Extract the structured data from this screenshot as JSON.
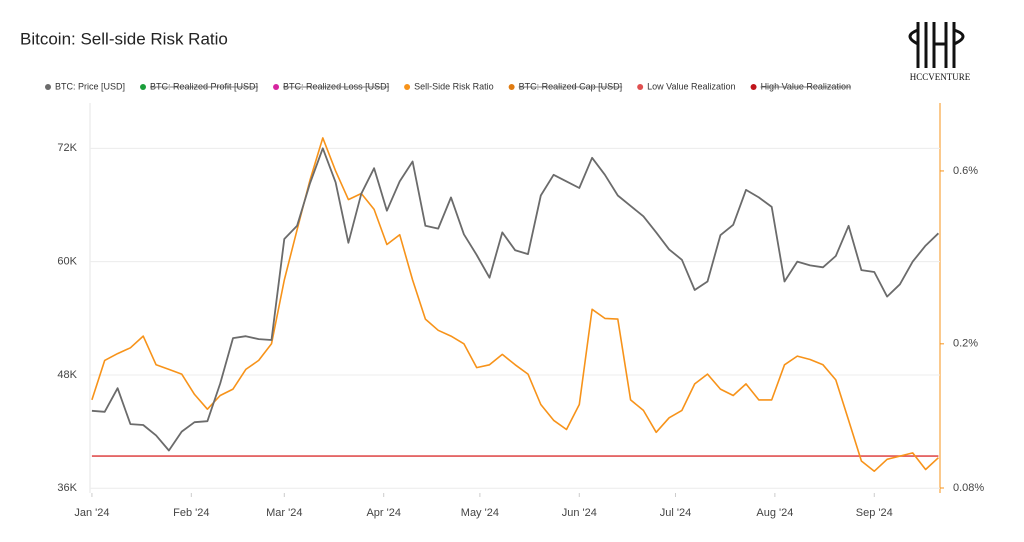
{
  "chart_data": {
    "type": "line",
    "title": "Bitcoin: Sell-side Risk Ratio",
    "watermark": "HCCVENTURE",
    "x": [
      0,
      4,
      8,
      12,
      16,
      20,
      24,
      28,
      32,
      36,
      40,
      44,
      48,
      52,
      56,
      60,
      64,
      68,
      72,
      76,
      80,
      84,
      88,
      92,
      96,
      100,
      104,
      108,
      112,
      116,
      120,
      124,
      128,
      132,
      136,
      140,
      144,
      148,
      152,
      156,
      160,
      164,
      168,
      172,
      176,
      180,
      184,
      188,
      192,
      196,
      200,
      204,
      208,
      212,
      216,
      220,
      224,
      228,
      232,
      236,
      240,
      244,
      248,
      252,
      256,
      260,
      264
    ],
    "xlim": [
      -0.6,
      264.5
    ],
    "xticks": [
      {
        "value": 0,
        "label": "Jan '24"
      },
      {
        "value": 31,
        "label": "Feb '24"
      },
      {
        "value": 60,
        "label": "Mar '24"
      },
      {
        "value": 91,
        "label": "Apr '24"
      },
      {
        "value": 121,
        "label": "May '24"
      },
      {
        "value": 152,
        "label": "Jun '24"
      },
      {
        "value": 182,
        "label": "Jul '24"
      },
      {
        "value": 213,
        "label": "Aug '24"
      },
      {
        "value": 244,
        "label": "Sep '24"
      }
    ],
    "ylim": [
      35500,
      76800
    ],
    "yticks": [
      {
        "value": 36000,
        "label": "36K"
      },
      {
        "value": 48000,
        "label": "48K"
      },
      {
        "value": 60000,
        "label": "60K"
      },
      {
        "value": 72000,
        "label": "72K"
      }
    ],
    "y2lim": [
      0.0775,
      0.924
    ],
    "y2log": true,
    "y2ticks": [
      {
        "value": 0.08,
        "label": "0.08%"
      },
      {
        "value": 0.2,
        "label": "0.2%"
      },
      {
        "value": 0.6,
        "label": "0.6%"
      }
    ],
    "grid": true,
    "legend": "top",
    "series": [
      {
        "name": "BTC: Price [USD]",
        "color": "#6b6b6b",
        "axis": "y",
        "visible": true,
        "values": [
          44200,
          44100,
          46600,
          42800,
          42700,
          41600,
          40000,
          42000,
          43000,
          43100,
          47100,
          51900,
          52100,
          51800,
          51700,
          62400,
          63800,
          68300,
          72000,
          68400,
          62000,
          67200,
          69900,
          65400,
          68500,
          70600,
          63800,
          63500,
          66800,
          62900,
          60700,
          58300,
          63100,
          61200,
          60800,
          67000,
          69200,
          68500,
          67800,
          71000,
          69200,
          67000,
          65900,
          64800,
          63100,
          61300,
          60200,
          57000,
          57900,
          62800,
          63900,
          67600,
          66800,
          65800,
          57900,
          60000,
          59600,
          59400,
          60600,
          63800,
          59100,
          58900,
          56300,
          57600,
          60000,
          61700,
          63000
        ]
      },
      {
        "name": "BTC: Realized Profit [USD]",
        "color": "#1a9e3a",
        "visible": false
      },
      {
        "name": "BTC: Realized Loss [USD]",
        "color": "#d6249f",
        "visible": false
      },
      {
        "name": "Sell-Side Risk Ratio",
        "color": "#f7931a",
        "axis": "y2",
        "visible": true,
        "values": [
          0.14,
          0.18,
          0.188,
          0.195,
          0.21,
          0.175,
          0.17,
          0.165,
          0.145,
          0.132,
          0.144,
          0.15,
          0.17,
          0.18,
          0.2,
          0.3,
          0.413,
          0.566,
          0.74,
          0.6,
          0.5,
          0.52,
          0.47,
          0.376,
          0.4,
          0.3,
          0.234,
          0.218,
          0.21,
          0.2,
          0.172,
          0.175,
          0.187,
          0.175,
          0.165,
          0.136,
          0.123,
          0.116,
          0.136,
          0.249,
          0.235,
          0.234,
          0.14,
          0.131,
          0.114,
          0.125,
          0.131,
          0.155,
          0.165,
          0.15,
          0.144,
          0.155,
          0.14,
          0.14,
          0.175,
          0.185,
          0.181,
          0.175,
          0.159,
          0.123,
          0.095,
          0.089,
          0.096,
          0.098,
          0.1,
          0.09,
          0.097
        ]
      },
      {
        "name": "BTC: Realized Cap [USD]",
        "color": "#e07b10",
        "visible": false
      },
      {
        "name": "Low Value Realization",
        "color": "#e05050",
        "axis": "y2",
        "visible": true,
        "values": [
          0.098,
          0.098,
          0.098,
          0.098,
          0.098,
          0.098,
          0.098,
          0.098,
          0.098,
          0.098,
          0.098,
          0.098,
          0.098,
          0.098,
          0.098,
          0.098,
          0.098,
          0.098,
          0.098,
          0.098,
          0.098,
          0.098,
          0.098,
          0.098,
          0.098,
          0.098,
          0.098,
          0.098,
          0.098,
          0.098,
          0.098,
          0.098,
          0.098,
          0.098,
          0.098,
          0.098,
          0.098,
          0.098,
          0.098,
          0.098,
          0.098,
          0.098,
          0.098,
          0.098,
          0.098,
          0.098,
          0.098,
          0.098,
          0.098,
          0.098,
          0.098,
          0.098,
          0.098,
          0.098,
          0.098,
          0.098,
          0.098,
          0.098,
          0.098,
          0.098,
          0.098,
          0.098,
          0.098,
          0.098,
          0.098,
          0.098,
          0.098
        ]
      },
      {
        "name": "High Value Realization",
        "color": "#c0141b",
        "visible": false
      }
    ]
  }
}
